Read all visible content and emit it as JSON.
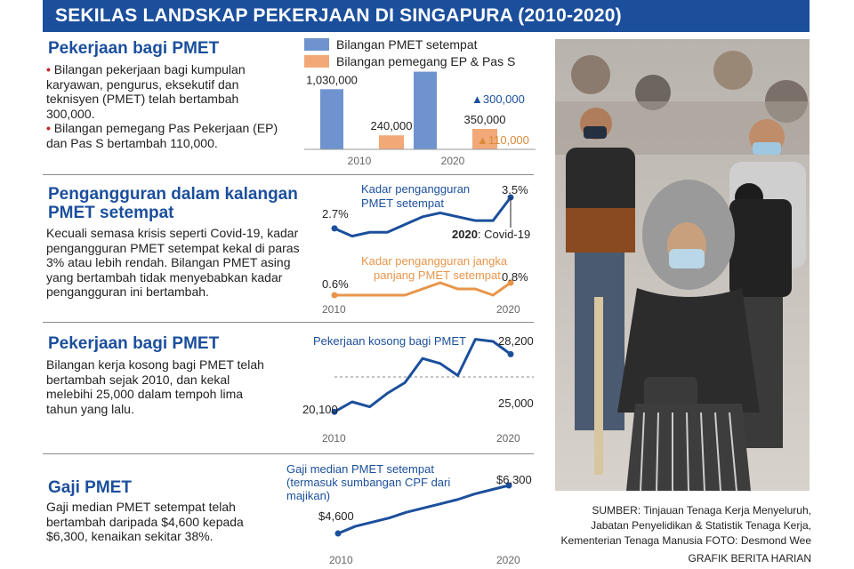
{
  "title": "SEKILAS LANDSKAP PEKERJAAN DI SINGAPURA (2010-2020)",
  "sections": {
    "pmet_jobs": {
      "title": "Pekerjaan bagi PMET",
      "bullets": [
        [
          "Bilangan pekerjaan bagi kumpulan",
          "karyawan, pengurus, eksekutif dan",
          "teknisyen (PMET) telah bertambah",
          "300,000."
        ],
        [
          "Bilangan pemegang Pas Pekerjaan (EP)",
          "dan Pas S bertambah 110,000."
        ]
      ],
      "bullet_mark": "•"
    },
    "unemployment": {
      "title_lines": [
        "Pengangguran dalam kalangan",
        "PMET setempat"
      ],
      "text_lines": [
        "Kecuali semasa krisis seperti Covid-19, kadar",
        "pengangguran PMET setempat kekal di paras",
        "3% atau lebih rendah. Bilangan PMET asing",
        "yang bertambah tidak menyebabkan kadar",
        "pengangguran ini bertambah."
      ]
    },
    "vacancies": {
      "title": "Pekerjaan bagi PMET",
      "text_lines": [
        "Bilangan kerja kosong bagi PMET telah",
        "bertambah sejak 2010, dan kekal",
        "melebihi 25,000 dalam tempoh lima",
        "tahun yang lalu."
      ]
    },
    "wages": {
      "title": "Gaji PMET",
      "text_lines": [
        "Gaji median PMET setempat telah",
        "bertambah daripada $4,600 kepada",
        "$6,300, kenaikan sekitar 38%."
      ]
    }
  },
  "chart_data": [
    {
      "type": "bar",
      "categories": [
        "2010",
        "2020"
      ],
      "series": [
        {
          "name": "Bilangan PMET setempat",
          "values": [
            1030000,
            1330000
          ],
          "labels": [
            "1,030,000",
            "1,330,000"
          ],
          "color": "#6e93cf"
        },
        {
          "name": "Bilangan pemegang EP & Pas S",
          "values": [
            240000,
            350000
          ],
          "labels": [
            "240,000",
            "350,000"
          ],
          "color": "#f2a977"
        }
      ],
      "annotations": [
        {
          "text": "▲300,000",
          "color": "#1b4f9c"
        },
        {
          "text": "▲110,000",
          "color": "#d98a3a"
        }
      ],
      "ylim": [
        0,
        1400000
      ]
    },
    {
      "type": "line",
      "x_labels": [
        "2010",
        "2020"
      ],
      "series": [
        {
          "name": "Kadar pengangguran PMET setempat",
          "color": "#1b4f9c",
          "x": [
            2010,
            2011,
            2012,
            2013,
            2014,
            2015,
            2016,
            2017,
            2018,
            2019,
            2020
          ],
          "values": [
            2.7,
            2.5,
            2.6,
            2.6,
            2.8,
            3.0,
            3.1,
            3.0,
            2.9,
            2.9,
            3.5
          ],
          "start_label": "2.7%",
          "end_label": "3.5%"
        },
        {
          "name": "Kadar pengangguran jangka panjang PMET setempat",
          "color": "#e8954a",
          "x": [
            2010,
            2011,
            2012,
            2013,
            2014,
            2015,
            2016,
            2017,
            2018,
            2019,
            2020
          ],
          "values": [
            0.6,
            0.6,
            0.6,
            0.6,
            0.6,
            0.7,
            0.8,
            0.7,
            0.7,
            0.6,
            0.8
          ],
          "start_label": "0.6%",
          "end_label": "0.8%"
        }
      ],
      "annotation": {
        "year": "2020",
        "text": ": Covid-19"
      }
    },
    {
      "type": "line",
      "x_labels": [
        "2010",
        "2020"
      ],
      "series": [
        {
          "name": "Pekerjaan kosong bagi PMET",
          "color": "#1b4f9c",
          "x": [
            2010,
            2011,
            2012,
            2013,
            2014,
            2015,
            2016,
            2017,
            2018,
            2019,
            2020
          ],
          "values": [
            20100,
            21500,
            20800,
            22700,
            24200,
            27600,
            26900,
            25200,
            30300,
            30000,
            28200
          ],
          "start_label": "20,100",
          "end_label": "28,200"
        }
      ],
      "reference_line": {
        "value": 25000,
        "label": "25,000"
      }
    },
    {
      "type": "line",
      "x_labels": [
        "2010",
        "2020"
      ],
      "series": [
        {
          "name_lines": [
            "Gaji median PMET setempat",
            "(termasuk sumbangan CPF dari",
            "majikan)"
          ],
          "color": "#1b4f9c",
          "x": [
            2010,
            2011,
            2012,
            2013,
            2014,
            2015,
            2016,
            2017,
            2018,
            2019,
            2020
          ],
          "values": [
            4600,
            4850,
            5000,
            5150,
            5350,
            5500,
            5650,
            5800,
            6000,
            6150,
            6300
          ],
          "start_label": "$4,600",
          "end_label": "$6,300"
        }
      ]
    }
  ],
  "photo": {
    "subject": "pedestrians wearing face masks"
  },
  "source_lines": [
    "SUMBER: Tinjauan Tenaga Kerja Menyeluruh,",
    "Jabatan Penyelidikan & Statistik Tenaga Kerja,",
    "Kementerian Tenaga Manusia  FOTO: Desmond Wee"
  ],
  "credit": "GRAFIK BERITA HARIAN"
}
